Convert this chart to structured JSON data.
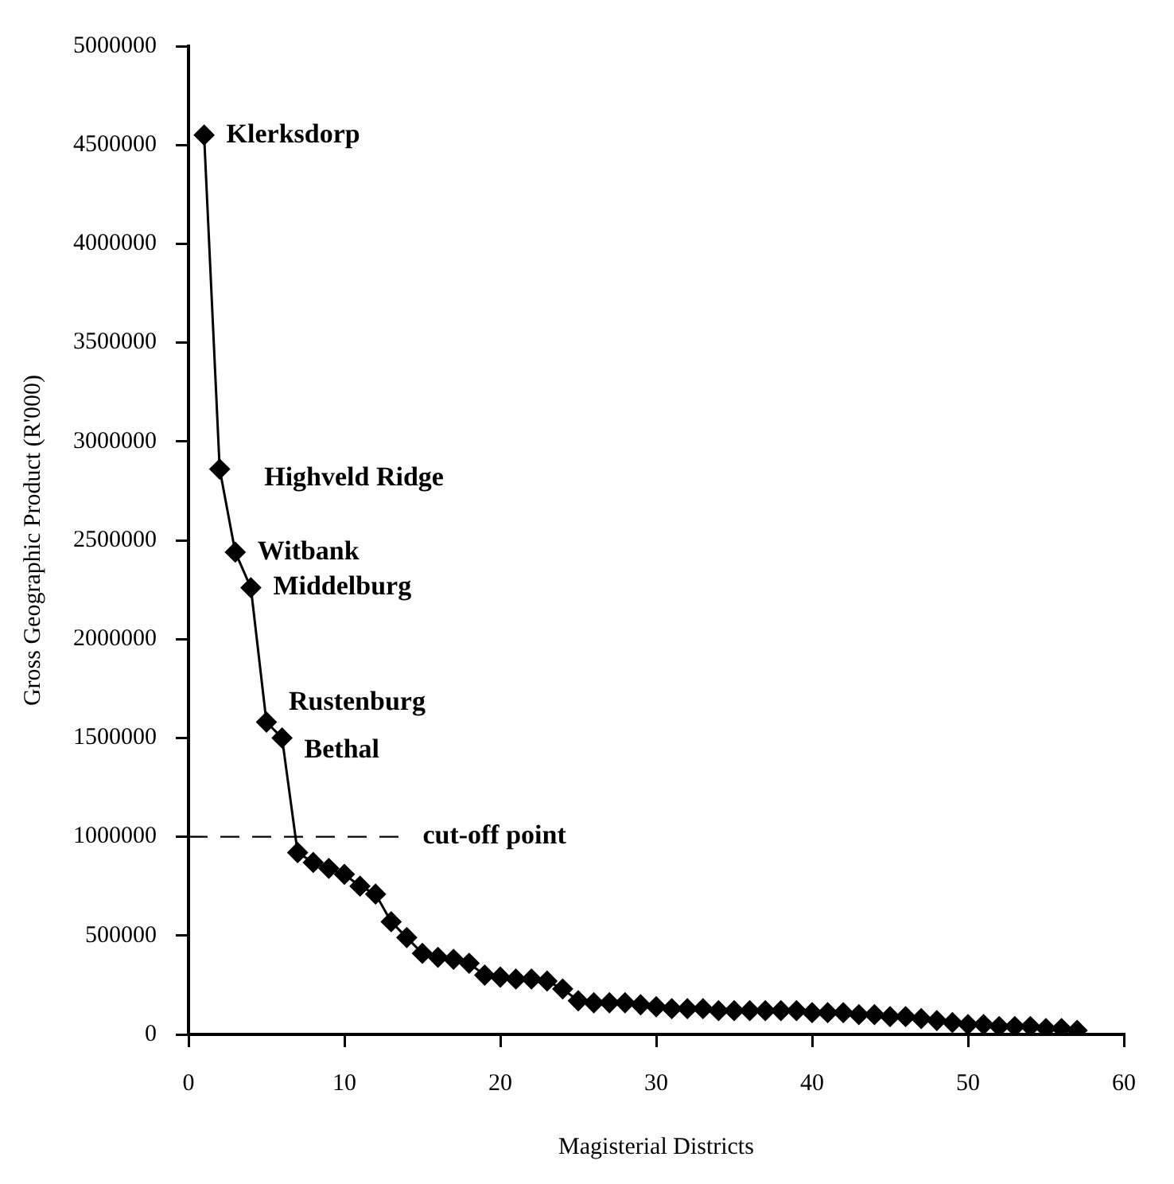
{
  "chart_data": {
    "type": "line",
    "xlabel": "Magisterial Districts",
    "ylabel": "Gross Geographic Product (R'000)",
    "x": [
      1,
      2,
      3,
      4,
      5,
      6,
      7,
      8,
      9,
      10,
      11,
      12,
      13,
      14,
      15,
      16,
      17,
      18,
      19,
      20,
      21,
      22,
      23,
      24,
      25,
      26,
      27,
      28,
      29,
      30,
      31,
      32,
      33,
      34,
      35,
      36,
      37,
      38,
      39,
      40,
      41,
      42,
      43,
      44,
      45,
      46,
      47,
      48,
      49,
      50,
      51,
      52,
      53,
      54,
      55,
      56,
      57
    ],
    "series": [
      {
        "color": "#000000",
        "values": [
          4550000,
          2860000,
          2440000,
          2260000,
          1580000,
          1500000,
          920000,
          870000,
          840000,
          810000,
          750000,
          710000,
          570000,
          490000,
          410000,
          390000,
          380000,
          360000,
          300000,
          290000,
          280000,
          280000,
          270000,
          230000,
          170000,
          160000,
          160000,
          160000,
          150000,
          140000,
          130000,
          130000,
          130000,
          120000,
          120000,
          120000,
          120000,
          120000,
          120000,
          110000,
          110000,
          110000,
          100000,
          100000,
          90000,
          90000,
          80000,
          70000,
          60000,
          50000,
          50000,
          40000,
          40000,
          40000,
          30000,
          30000,
          20000
        ]
      }
    ],
    "xlim": [
      0,
      60
    ],
    "xticks": [
      0,
      10,
      20,
      30,
      40,
      50,
      60
    ],
    "ylim": [
      0,
      5000000
    ],
    "yticks": [
      0,
      500000,
      1000000,
      1500000,
      2000000,
      2500000,
      3000000,
      3500000,
      4000000,
      4500000,
      5000000
    ],
    "marker": "diamond",
    "line_style": "solid",
    "grid": false,
    "legend": false,
    "ref_lines": [
      {
        "axis": "y",
        "value": 1000000,
        "label": "cut-off point",
        "line_style": "dashed",
        "color": "#000000"
      }
    ],
    "annotations": [
      {
        "text": "Klerksdorp",
        "x": 1,
        "y": 4550000
      },
      {
        "text": "Highveld Ridge",
        "x": 2,
        "y": 2860000
      },
      {
        "text": "Witbank",
        "x": 3,
        "y": 2440000
      },
      {
        "text": "Middelburg",
        "x": 4,
        "y": 2260000
      },
      {
        "text": "Rustenburg",
        "x": 5,
        "y": 1580000
      },
      {
        "text": "Bethal",
        "x": 6,
        "y": 1500000
      }
    ]
  }
}
